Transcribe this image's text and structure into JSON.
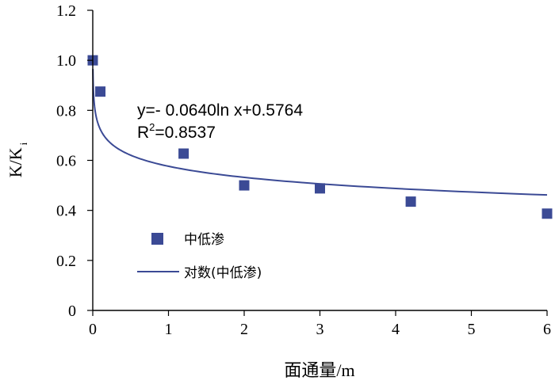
{
  "chart_data": {
    "type": "scatter",
    "xlabel": "面通量/m",
    "ylabel": {
      "main": "K/K",
      "subscript": "i"
    },
    "xlim": [
      0,
      6
    ],
    "ylim": [
      0,
      1.2
    ],
    "x_ticks": [
      0,
      1,
      2,
      3,
      4,
      5,
      6
    ],
    "x_tick_labels": [
      "0",
      "1",
      "2",
      "3",
      "4",
      "5",
      "6"
    ],
    "y_ticks": [
      0,
      0.2,
      0.4,
      0.6,
      0.8,
      1.0,
      1.2
    ],
    "y_tick_labels": [
      "0",
      "0.2",
      "0.4",
      "0.6",
      "0.8",
      "1.0",
      "1.2"
    ],
    "grid": false,
    "series": [
      {
        "name": "中低渗",
        "type": "scatter",
        "marker": "square",
        "color": "#3b4a95",
        "x": [
          0.0,
          0.1,
          1.2,
          2.0,
          3.0,
          4.2,
          6.0
        ],
        "y": [
          1.0,
          0.875,
          0.627,
          0.5,
          0.488,
          0.435,
          0.387
        ]
      },
      {
        "name": "对数(中低渗)",
        "type": "line",
        "color": "#3b4a95",
        "fit": {
          "kind": "log",
          "a": -0.064,
          "b": 0.5764
        }
      }
    ],
    "annotation": {
      "equation": "y=- 0.0640ln x+0.5764",
      "r2_prefix": "R",
      "r2_sup": "2",
      "r2_value": "=0.8537"
    },
    "legend": {
      "placement": "bottom-left inside",
      "entries": [
        "中低渗",
        "对数(中低渗)"
      ]
    }
  }
}
